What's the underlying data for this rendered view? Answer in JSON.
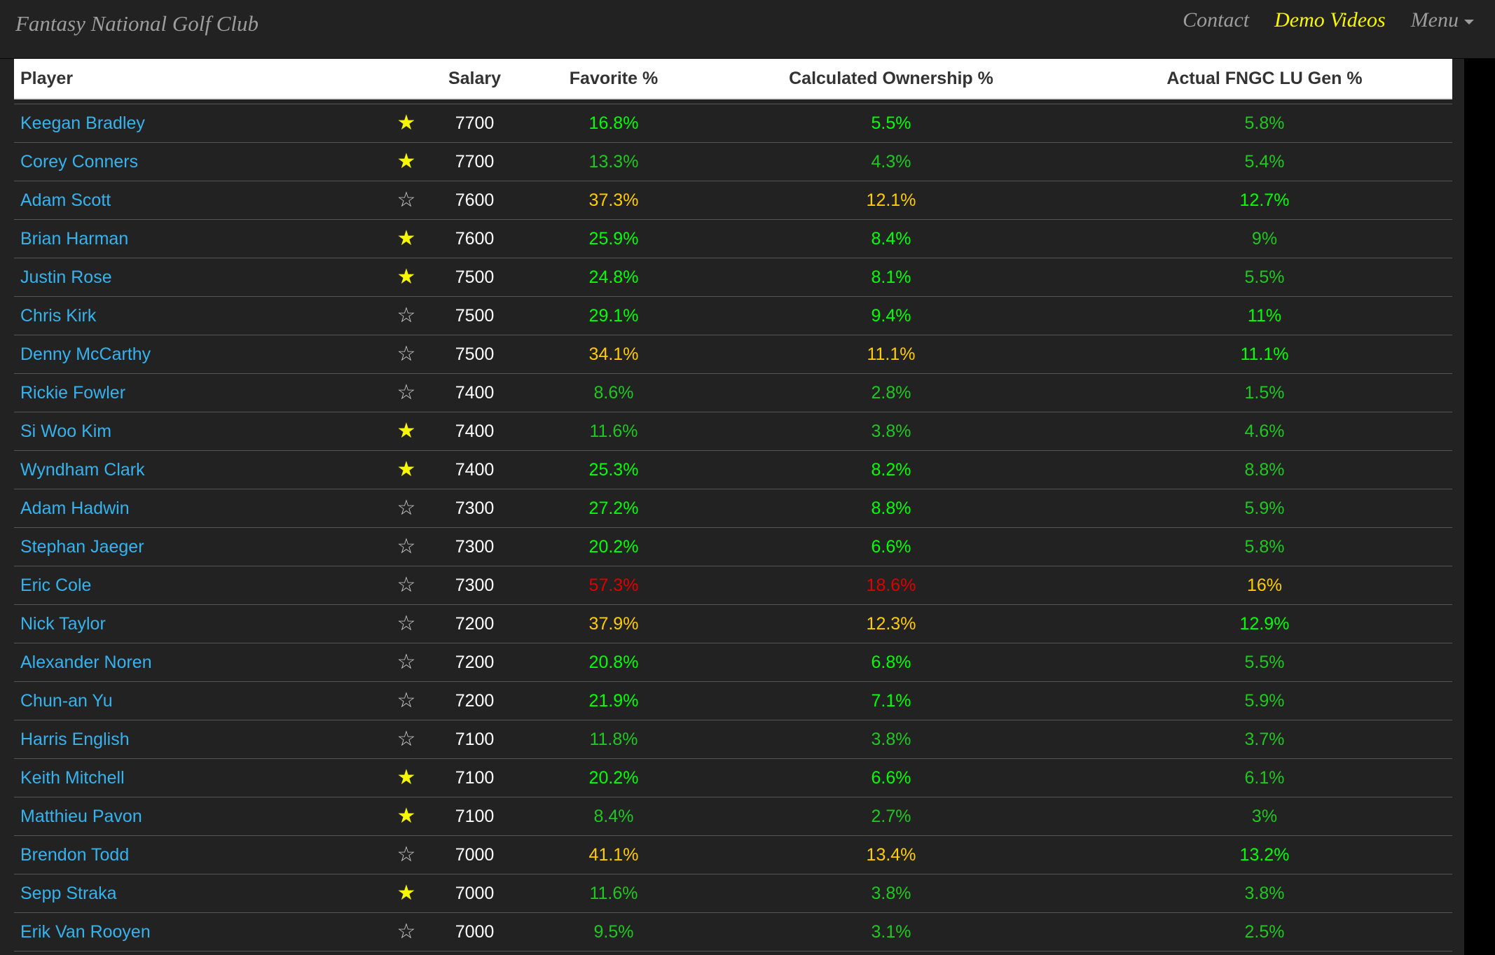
{
  "navbar": {
    "brand": "Fantasy National Golf Club",
    "links": [
      "Contact",
      "Demo Videos",
      "Menu"
    ]
  },
  "table": {
    "headers": {
      "player": "Player",
      "salary": "Salary",
      "favorite": "Favorite %",
      "calculated": "Calculated Ownership %",
      "actual": "Actual FNGC LU Gen %"
    },
    "rows": [
      {
        "player": "Keegan Bradley",
        "starred": true,
        "salary": "7700",
        "favorite": "16.8%",
        "fav_color": "bright",
        "calc": "5.5%",
        "calc_color": "bright",
        "actual": "5.8%",
        "act_color": "dim"
      },
      {
        "player": "Corey Conners",
        "starred": true,
        "salary": "7700",
        "favorite": "13.3%",
        "fav_color": "dim",
        "calc": "4.3%",
        "calc_color": "dim",
        "actual": "5.4%",
        "act_color": "dim"
      },
      {
        "player": "Adam Scott",
        "starred": false,
        "salary": "7600",
        "favorite": "37.3%",
        "fav_color": "yellow",
        "calc": "12.1%",
        "calc_color": "yellow",
        "actual": "12.7%",
        "act_color": "bright"
      },
      {
        "player": "Brian Harman",
        "starred": true,
        "salary": "7600",
        "favorite": "25.9%",
        "fav_color": "bright",
        "calc": "8.4%",
        "calc_color": "bright",
        "actual": "9%",
        "act_color": "dim"
      },
      {
        "player": "Justin Rose",
        "starred": true,
        "salary": "7500",
        "favorite": "24.8%",
        "fav_color": "bright",
        "calc": "8.1%",
        "calc_color": "bright",
        "actual": "5.5%",
        "act_color": "dim"
      },
      {
        "player": "Chris Kirk",
        "starred": false,
        "salary": "7500",
        "favorite": "29.1%",
        "fav_color": "bright",
        "calc": "9.4%",
        "calc_color": "bright",
        "actual": "11%",
        "act_color": "bright"
      },
      {
        "player": "Denny McCarthy",
        "starred": false,
        "salary": "7500",
        "favorite": "34.1%",
        "fav_color": "yellow",
        "calc": "11.1%",
        "calc_color": "yellow",
        "actual": "11.1%",
        "act_color": "bright"
      },
      {
        "player": "Rickie Fowler",
        "starred": false,
        "salary": "7400",
        "favorite": "8.6%",
        "fav_color": "dim",
        "calc": "2.8%",
        "calc_color": "dim",
        "actual": "1.5%",
        "act_color": "dim"
      },
      {
        "player": "Si Woo Kim",
        "starred": true,
        "salary": "7400",
        "favorite": "11.6%",
        "fav_color": "dim",
        "calc": "3.8%",
        "calc_color": "dim",
        "actual": "4.6%",
        "act_color": "dim"
      },
      {
        "player": "Wyndham Clark",
        "starred": true,
        "salary": "7400",
        "favorite": "25.3%",
        "fav_color": "bright",
        "calc": "8.2%",
        "calc_color": "bright",
        "actual": "8.8%",
        "act_color": "dim"
      },
      {
        "player": "Adam Hadwin",
        "starred": false,
        "salary": "7300",
        "favorite": "27.2%",
        "fav_color": "bright",
        "calc": "8.8%",
        "calc_color": "bright",
        "actual": "5.9%",
        "act_color": "dim"
      },
      {
        "player": "Stephan Jaeger",
        "starred": false,
        "salary": "7300",
        "favorite": "20.2%",
        "fav_color": "bright",
        "calc": "6.6%",
        "calc_color": "bright",
        "actual": "5.8%",
        "act_color": "dim"
      },
      {
        "player": "Eric Cole",
        "starred": false,
        "salary": "7300",
        "favorite": "57.3%",
        "fav_color": "red",
        "calc": "18.6%",
        "calc_color": "red",
        "actual": "16%",
        "act_color": "yellow"
      },
      {
        "player": "Nick Taylor",
        "starred": false,
        "salary": "7200",
        "favorite": "37.9%",
        "fav_color": "yellow",
        "calc": "12.3%",
        "calc_color": "yellow",
        "actual": "12.9%",
        "act_color": "bright"
      },
      {
        "player": "Alexander Noren",
        "starred": false,
        "salary": "7200",
        "favorite": "20.8%",
        "fav_color": "bright",
        "calc": "6.8%",
        "calc_color": "bright",
        "actual": "5.5%",
        "act_color": "dim"
      },
      {
        "player": "Chun-an Yu",
        "starred": false,
        "salary": "7200",
        "favorite": "21.9%",
        "fav_color": "bright",
        "calc": "7.1%",
        "calc_color": "bright",
        "actual": "5.9%",
        "act_color": "dim"
      },
      {
        "player": "Harris English",
        "starred": false,
        "salary": "7100",
        "favorite": "11.8%",
        "fav_color": "dim",
        "calc": "3.8%",
        "calc_color": "dim",
        "actual": "3.7%",
        "act_color": "dim"
      },
      {
        "player": "Keith Mitchell",
        "starred": true,
        "salary": "7100",
        "favorite": "20.2%",
        "fav_color": "bright",
        "calc": "6.6%",
        "calc_color": "bright",
        "actual": "6.1%",
        "act_color": "dim"
      },
      {
        "player": "Matthieu Pavon",
        "starred": true,
        "salary": "7100",
        "favorite": "8.4%",
        "fav_color": "dim",
        "calc": "2.7%",
        "calc_color": "dim",
        "actual": "3%",
        "act_color": "dim"
      },
      {
        "player": "Brendon Todd",
        "starred": false,
        "salary": "7000",
        "favorite": "41.1%",
        "fav_color": "yellow",
        "calc": "13.4%",
        "calc_color": "yellow",
        "actual": "13.2%",
        "act_color": "bright"
      },
      {
        "player": "Sepp Straka",
        "starred": true,
        "salary": "7000",
        "favorite": "11.6%",
        "fav_color": "dim",
        "calc": "3.8%",
        "calc_color": "dim",
        "actual": "3.8%",
        "act_color": "dim"
      },
      {
        "player": "Erik Van Rooyen",
        "starred": false,
        "salary": "7000",
        "favorite": "9.5%",
        "fav_color": "dim",
        "calc": "3.1%",
        "calc_color": "dim",
        "actual": "2.5%",
        "act_color": "dim"
      }
    ]
  },
  "colors": {
    "bright": "#00ff00",
    "dim": "#1ec81e",
    "yellow": "#ffcc00",
    "red": "#e00000",
    "star_on": "#f7f700",
    "link": "#35b3ef"
  },
  "icons": {
    "star_on": "star-filled-icon",
    "star_off": "star-outline-icon",
    "menu_caret": "caret-down-icon"
  }
}
